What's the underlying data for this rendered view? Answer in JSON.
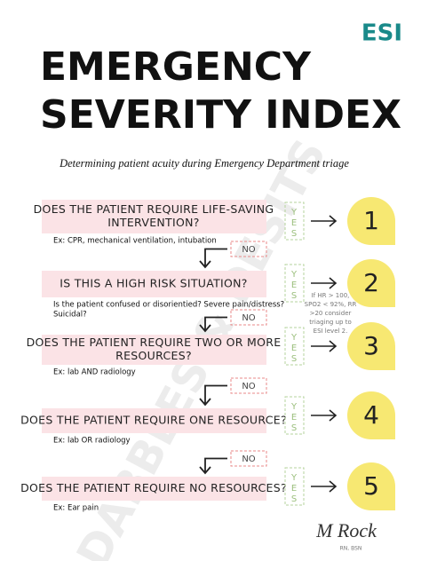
{
  "header": {
    "badge": "ESI",
    "title": [
      "EMERGENCY",
      "SEVERITY INDEX"
    ],
    "subtitle": "Determining patient acuity during Emergency Department triage"
  },
  "steps": [
    {
      "question": [
        "DOES THE PATIENT REQUIRE LIFE-SAVING",
        "INTERVENTION?"
      ],
      "example": [
        "Ex: CPR, mechanical ventilation, intubation"
      ],
      "yes": "YES",
      "level": "1",
      "no": "NO"
    },
    {
      "question": [
        "IS THIS A HIGH RISK SITUATION?"
      ],
      "example": [
        "Is the patient confused or disorientied? Severe pain/distress?",
        "Suicidal?"
      ],
      "yes": "YES",
      "level": "2",
      "no": "NO"
    },
    {
      "question": [
        "DOES THE PATIENT REQUIRE TWO OR MORE",
        "RESOURCES?"
      ],
      "example": [
        "Ex: lab AND radiology"
      ],
      "yes": "YES",
      "level": "3",
      "no": "NO"
    },
    {
      "question": [
        "DOES THE PATIENT REQUIRE ONE RESOURCE?"
      ],
      "example": [
        "Ex: lab OR radiology"
      ],
      "yes": "YES",
      "level": "4",
      "no": "NO"
    },
    {
      "question": [
        "DOES THE PATIENT REQUIRE NO RESOURCES?"
      ],
      "example": [
        "Ex: Ear pain"
      ],
      "yes": "YES",
      "level": "5"
    }
  ],
  "note": [
    "If HR > 100,",
    "SPO2 < 92%, RR",
    ">20 consider",
    "triaging up to",
    "ESI level 2."
  ],
  "watermark": "DABBLES & DESITS",
  "signature": {
    "name": "M Rock",
    "credentials": "RN, BSN"
  }
}
